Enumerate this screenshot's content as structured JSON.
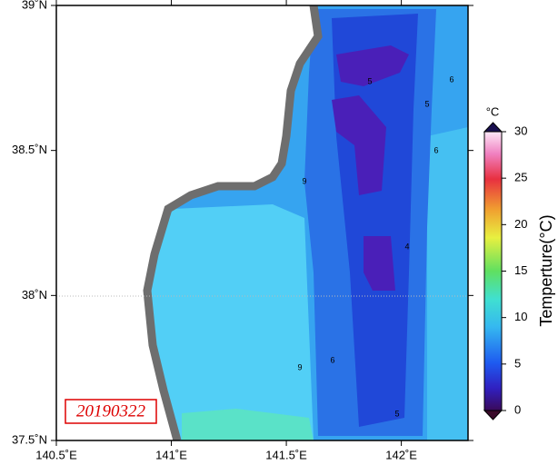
{
  "map": {
    "xlim": [
      140.5,
      142.29
    ],
    "ylim": [
      37.5,
      39
    ],
    "xticks": [
      {
        "value": 140.5,
        "label": "140.5˚E"
      },
      {
        "value": 141,
        "label": "141˚E"
      },
      {
        "value": 141.5,
        "label": "141.5˚E"
      },
      {
        "value": 142,
        "label": "142˚E"
      }
    ],
    "yticks": [
      {
        "value": 37.5,
        "label": "37.5˚N"
      },
      {
        "value": 38,
        "label": "38˚N"
      },
      {
        "value": 38.5,
        "label": "38.5˚N"
      },
      {
        "value": 39,
        "label": "39˚N"
      }
    ],
    "date_label": "20190322",
    "contour_labels": [
      6,
      5,
      6,
      4,
      5,
      5,
      6,
      9,
      9
    ],
    "colorbar": {
      "unit": "°C",
      "title": "Temperture(°C)",
      "lim": [
        0,
        30
      ],
      "ticks": [
        0,
        5,
        10,
        15,
        20,
        25,
        30
      ]
    }
  }
}
